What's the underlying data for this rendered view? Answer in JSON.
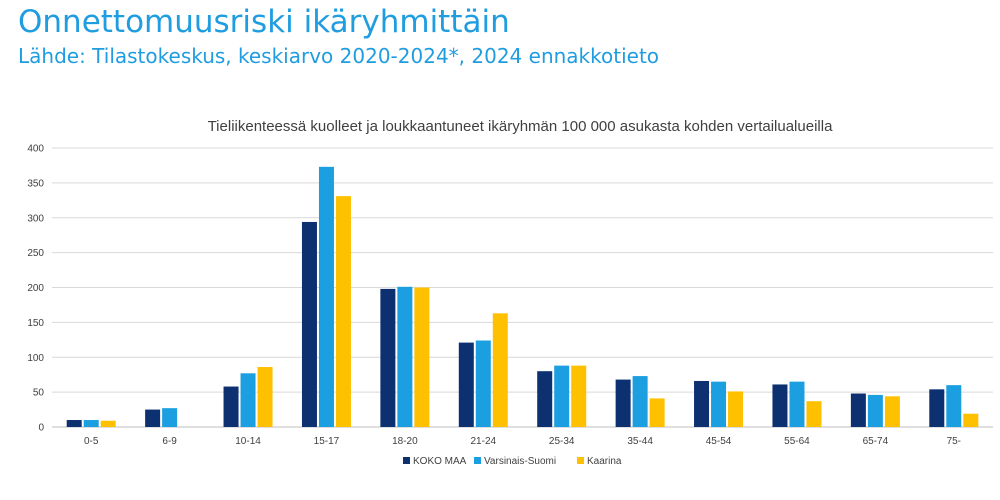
{
  "page": {
    "title": "Onnettomuusriski ikäryhmittäin",
    "subtitle": "Lähde: Tilastokeskus, keskiarvo 2020-2024*, 2024 ennakkotieto"
  },
  "chart_data": {
    "type": "bar",
    "title": "Tieliikenteessä kuolleet ja loukkaantuneet ikäryhmän 100 000 asukasta kohden vertailualueilla",
    "xlabel": "",
    "ylabel": "",
    "ylim": [
      0,
      400
    ],
    "yticks": [
      0,
      50,
      100,
      150,
      200,
      250,
      300,
      350,
      400
    ],
    "grid": true,
    "legend": "bottom",
    "categories": [
      "0-5",
      "6-9",
      "10-14",
      "15-17",
      "18-20",
      "21-24",
      "25-34",
      "35-44",
      "45-54",
      "55-64",
      "65-74",
      "75-"
    ],
    "series": [
      {
        "name": "KOKO MAA",
        "color": "#0c3070",
        "values": [
          10,
          25,
          58,
          294,
          198,
          121,
          80,
          68,
          66,
          61,
          48,
          54
        ]
      },
      {
        "name": "Varsinais-Suomi",
        "color": "#1b9fe0",
        "values": [
          10,
          27,
          77,
          373,
          201,
          124,
          88,
          73,
          65,
          65,
          46,
          60
        ]
      },
      {
        "name": "Kaarina",
        "color": "#ffc000",
        "values": [
          9,
          0,
          86,
          331,
          200,
          163,
          88,
          41,
          51,
          37,
          44,
          19
        ]
      }
    ]
  }
}
